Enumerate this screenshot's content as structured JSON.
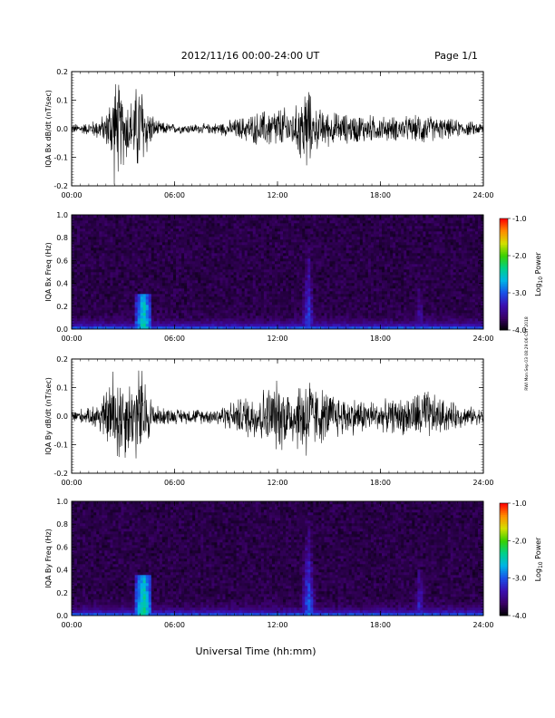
{
  "header": {
    "date_range": "2012/11/16  00:00-24:00 UT",
    "page": "Page 1/1"
  },
  "side_stamp": "RWI  Mon Sep 03 08:29:06 CST 2018",
  "x_axis": {
    "label": "Universal Time (hh:mm)",
    "ticks": [
      "00:00",
      "06:00",
      "12:00",
      "18:00",
      "24:00"
    ],
    "tick_hours": [
      0,
      6,
      12,
      18,
      24
    ],
    "range_hours": [
      0,
      24
    ]
  },
  "colorbar": {
    "label_main": "Log",
    "label_sub": "10",
    "label_end": " Power",
    "ticks": [
      "-1.0",
      "-2.0",
      "-3.0",
      "-4.0"
    ],
    "tick_values": [
      -1,
      -2,
      -3,
      -4
    ],
    "range": [
      -4,
      -1
    ],
    "colors": [
      "#000000",
      "#3a0066",
      "#3b0fb0",
      "#1a4fe8",
      "#00b4e6",
      "#00d08a",
      "#38d000",
      "#d4e000",
      "#ff8c00",
      "#ff0000"
    ]
  },
  "colors": {
    "trace": "#000000",
    "spectrogram_background": "#2b1078"
  },
  "chart_data": [
    {
      "type": "line",
      "ylabel": "IQA Bx dB/dt (nT/sec)",
      "ylim": [
        -0.2,
        0.2
      ],
      "yticks": [
        "0.2",
        "0.1",
        "0.0",
        "-0.1",
        "-0.2"
      ],
      "ytick_values": [
        0.2,
        0.1,
        0.0,
        -0.1,
        -0.2
      ],
      "x_hours": [
        0,
        1,
        2,
        2.5,
        3,
        3.5,
        4,
        4.5,
        5,
        6,
        7,
        8,
        9,
        10,
        11,
        12,
        13,
        13.8,
        14,
        15,
        16,
        17,
        18,
        19,
        20,
        20.5,
        21,
        22,
        23,
        24
      ],
      "amplitude_envelope": [
        0.02,
        0.025,
        0.06,
        0.22,
        0.15,
        0.12,
        0.22,
        0.08,
        0.03,
        0.02,
        0.02,
        0.02,
        0.03,
        0.05,
        0.07,
        0.09,
        0.08,
        0.21,
        0.09,
        0.07,
        0.06,
        0.06,
        0.05,
        0.05,
        0.05,
        0.07,
        0.05,
        0.04,
        0.03,
        0.025
      ]
    },
    {
      "type": "heatmap",
      "ylabel": "IQA Bx Freq (Hz)",
      "ylim": [
        0.0,
        1.0
      ],
      "yticks": [
        "1.0",
        "0.8",
        "0.6",
        "0.4",
        "0.2",
        "0.0"
      ],
      "ytick_values": [
        1.0,
        0.8,
        0.6,
        0.4,
        0.2,
        0.0
      ],
      "zlim": [
        -4,
        -1
      ],
      "features": [
        {
          "hour": 4.2,
          "max_freq_hz": 0.3,
          "peak_log_power": -2.2
        },
        {
          "hour": 13.8,
          "max_freq_hz": 0.78,
          "peak_log_power": -2.8
        },
        {
          "hour": 20.3,
          "max_freq_hz": 0.35,
          "peak_log_power": -3.1
        }
      ]
    },
    {
      "type": "line",
      "ylabel": "IQA By dB/dt (nT/sec)",
      "ylim": [
        -0.2,
        0.2
      ],
      "yticks": [
        "0.2",
        "0.1",
        "0.0",
        "-0.1",
        "-0.2"
      ],
      "ytick_values": [
        0.2,
        0.1,
        0.0,
        -0.1,
        -0.2
      ],
      "x_hours": [
        0,
        1,
        2,
        2.5,
        3,
        3.5,
        4,
        4.5,
        5,
        6,
        7,
        8,
        9,
        10,
        11,
        12,
        13,
        13.8,
        14,
        15,
        16,
        17,
        18,
        19,
        20,
        20.5,
        21,
        22,
        23,
        24
      ],
      "amplitude_envelope": [
        0.03,
        0.03,
        0.1,
        0.22,
        0.18,
        0.14,
        0.22,
        0.1,
        0.04,
        0.03,
        0.03,
        0.03,
        0.05,
        0.08,
        0.11,
        0.14,
        0.12,
        0.21,
        0.13,
        0.1,
        0.08,
        0.07,
        0.06,
        0.07,
        0.09,
        0.12,
        0.09,
        0.06,
        0.04,
        0.03
      ]
    },
    {
      "type": "heatmap",
      "ylabel": "IQA By Freq (Hz)",
      "ylim": [
        0.0,
        1.0
      ],
      "yticks": [
        "1.0",
        "0.8",
        "0.6",
        "0.4",
        "0.2",
        "0.0"
      ],
      "ytick_values": [
        1.0,
        0.8,
        0.6,
        0.4,
        0.2,
        0.0
      ],
      "zlim": [
        -4,
        -1
      ],
      "features": [
        {
          "hour": 4.2,
          "max_freq_hz": 0.35,
          "peak_log_power": -2.1
        },
        {
          "hour": 13.8,
          "max_freq_hz": 0.9,
          "peak_log_power": -2.7
        },
        {
          "hour": 20.3,
          "max_freq_hz": 0.4,
          "peak_log_power": -3.0
        }
      ]
    }
  ]
}
